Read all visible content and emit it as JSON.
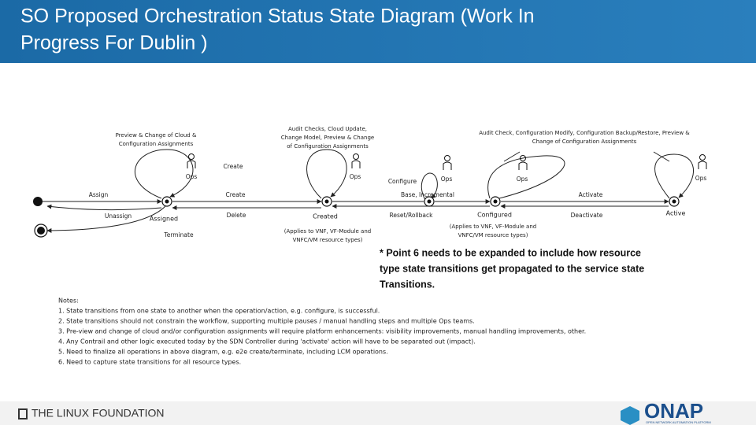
{
  "header": {
    "title": [
      "SO Proposed Orchestration Status State Diagram (Work In",
      "Progress For Dublin )"
    ]
  },
  "annotations": [
    [
      "Preview & Change of Cloud &",
      "Configuration Assignments"
    ],
    [
      "Audit Checks, Cloud Update,",
      "Change Model, Preview & Change",
      "of Configuration Assignments"
    ],
    [
      "Audit Check, Configuration Modify, Configuration Backup/Restore, Preview &",
      "Change of Configuration Assignments"
    ]
  ],
  "ops": [
    "Ops",
    "Ops",
    "Ops",
    "Ops",
    "Ops"
  ],
  "states": [
    "Assigned",
    "Created",
    "Configured",
    "Active"
  ],
  "transitions": [
    "Create",
    "Assign",
    "Create",
    "Delete",
    "Unassign",
    "Terminate",
    "Configure",
    "Base, Incremental",
    "Reset/Rollback",
    "Activate",
    "Deactivate"
  ],
  "scope_notes": [
    [
      "(Applies to VNF, VF-Module and",
      "VNFC/VM resource types)"
    ],
    [
      "(Applies to VNF, VF-Module and",
      "VNFC/VM resource types)"
    ]
  ],
  "callout": [
    "* Point 6 needs to be expanded to include how resource",
    "type state transitions get propagated to the service state",
    "Transitions."
  ],
  "notes": {
    "heading": "Notes:",
    "items": [
      "1.  State transitions from one state to another when the operation/action, e.g. configure, is successful.",
      "2.  State transitions should not constrain the workflow, supporting multiple pauses / manual handling steps and multiple Ops teams.",
      "3.  Pre-view and change of cloud and/or configuration assignments will require platform enhancements: visibility improvements, manual handling improvements, other.",
      "4.  Any Contrail and other logic executed today by the SDN Controller during 'activate' action will have to be separated out (impact).",
      "5.  Need to finalize all operations in above diagram, e.g. e2e create/terminate, including LCM operations.",
      "6.  Need to capture state transitions for all resource types."
    ]
  },
  "footer": {
    "left": "THE LINUX FOUNDATION",
    "right": "ONAP",
    "tagline": "OPEN NETWORK AUTOMATION PLATFORM"
  }
}
